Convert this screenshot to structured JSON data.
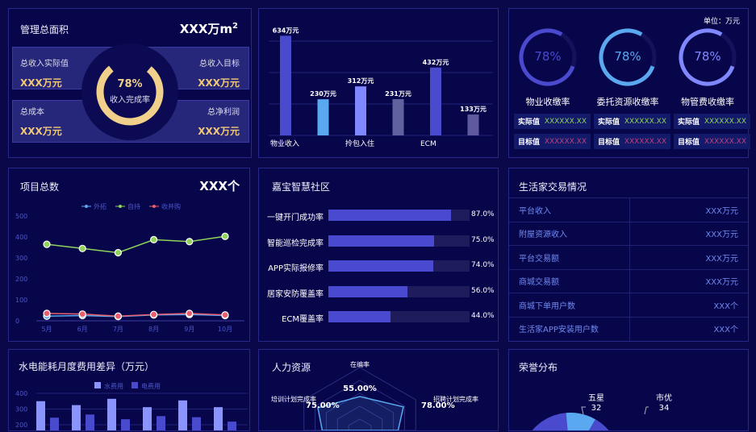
{
  "colors": {
    "background": "#0a0848",
    "gold": "#f0c878",
    "blue": "#4a4acf",
    "lightblue": "#5aa8f0",
    "green": "#8fd35a",
    "red": "#e86070"
  },
  "area": {
    "title": "管理总面积",
    "value": "XXX万m",
    "sup": "2",
    "ring_percent": "78%",
    "ring_label": "收入完成率",
    "ring_value": 78,
    "boxes": [
      {
        "label": "总收入实际值",
        "value": "XXX万元"
      },
      {
        "label": "总收入目标",
        "value": "XXX万元"
      },
      {
        "label": "总成本",
        "value": "XXX万元"
      },
      {
        "label": "总净利润",
        "value": "XXX万元"
      }
    ]
  },
  "collect": {
    "unit": "单位：万元",
    "items": [
      {
        "percent": "78%",
        "value": 78,
        "name": "物业收缴率",
        "color": "#4a4acf",
        "actual_label": "实际值",
        "actual": "XXXXXX.XX",
        "target_label": "目标值",
        "target": "XXXXXX.XX"
      },
      {
        "percent": "78%",
        "value": 78,
        "name": "委托资源收缴率",
        "color": "#5aa8f0",
        "actual_label": "实际值",
        "actual": "XXXXXX.XX",
        "target_label": "目标值",
        "target": "XXXXXX.XX"
      },
      {
        "percent": "78%",
        "value": 78,
        "name": "物管费收缴率",
        "color": "#8088ff",
        "actual_label": "实际值",
        "actual": "XXXXXX.XX",
        "target_label": "目标值",
        "target": "XXXXXX.XX"
      }
    ]
  },
  "projects": {
    "title": "项目总数",
    "value": "XXX个"
  },
  "community": {
    "title": "嘉宝智慧社区"
  },
  "trade": {
    "title": "生活家交易情况",
    "rows": [
      {
        "label": "平台收入",
        "value": "XXX万元"
      },
      {
        "label": "附屋资源收入",
        "value": "XXX万元"
      },
      {
        "label": "平台交易额",
        "value": "XXX万元"
      },
      {
        "label": "商城交易额",
        "value": "XXX万元"
      },
      {
        "label": "商城下单用户数",
        "value": "XXX个"
      },
      {
        "label": "生活家APP安装用户数",
        "value": "XXX个"
      }
    ]
  },
  "energy": {
    "title": "水电能耗月度费用差异（万元）"
  },
  "hr": {
    "title": "人力资源"
  },
  "honor": {
    "title": "荣誉分布"
  },
  "chart_data": [
    {
      "id": "revenue",
      "type": "bar",
      "x_labels": [
        "物业收入",
        "拎包入住",
        "ECM"
      ],
      "values": [
        634,
        230,
        312,
        231,
        432,
        133
      ],
      "labels": [
        "634万元",
        "230万元",
        "312万元",
        "231万元",
        "432万元",
        "133万元"
      ],
      "colors": [
        "#4a4acf",
        "#5aa8f0",
        "#8088ff",
        "#5f629e",
        "#4a4acf",
        "#5f5a9e"
      ],
      "ylim": [
        0,
        800
      ],
      "grid": true
    },
    {
      "id": "projects",
      "type": "line",
      "categories": [
        "5月",
        "6月",
        "7月",
        "8月",
        "9月",
        "10月"
      ],
      "yticks": [
        "0",
        "100",
        "200",
        "300",
        "400",
        "500"
      ],
      "ylim": [
        0,
        500
      ],
      "legend": "top",
      "series": [
        {
          "name": "外拓",
          "color": "#5aa8f0",
          "values": [
            22,
            25,
            20,
            28,
            30,
            25
          ]
        },
        {
          "name": "自持",
          "color": "#8fd35a",
          "values": [
            365,
            345,
            325,
            387,
            378,
            403
          ]
        },
        {
          "name": "收并购",
          "color": "#e86070",
          "values": [
            35,
            32,
            22,
            30,
            35,
            28
          ]
        }
      ]
    },
    {
      "id": "community",
      "type": "bar",
      "orientation": "horizontal",
      "categories": [
        "一键开门成功率",
        "智能巡检完成率",
        "APP实际报修率",
        "居家安防覆盖率",
        "ECM覆盖率"
      ],
      "values": [
        87,
        75,
        74,
        56,
        44
      ],
      "labels": [
        "87.0%",
        "75.0%",
        "74.0%",
        "56.0%",
        "44.0%"
      ],
      "xlim": [
        0,
        100
      ]
    },
    {
      "id": "energy",
      "type": "bar",
      "legend": "top",
      "yticks": [
        "400",
        "300",
        "200"
      ],
      "ylim": [
        0,
        400
      ],
      "series": [
        {
          "name": "水费用",
          "color": "#8a94ff",
          "values": [
            350,
            325,
            365,
            312,
            355,
            312
          ]
        },
        {
          "name": "电费用",
          "color": "#4a4acf",
          "values": [
            245,
            265,
            235,
            255,
            248,
            220
          ]
        }
      ]
    },
    {
      "id": "hr",
      "type": "radar",
      "indicators": [
        {
          "name": "在编率",
          "value": 55,
          "label": "55.00%"
        },
        {
          "name": "招聘计划完成率",
          "value": 78,
          "label": "78.00%"
        },
        {
          "name": "培训计划完成率",
          "value": 75,
          "label": "75.00%"
        }
      ],
      "max": 100
    },
    {
      "id": "honor",
      "type": "pie",
      "slices": [
        {
          "name": "五星",
          "value": 32,
          "color": "#5aa8f0"
        },
        {
          "name": "市优",
          "value": 34,
          "color": "#4a4acf"
        }
      ]
    }
  ]
}
